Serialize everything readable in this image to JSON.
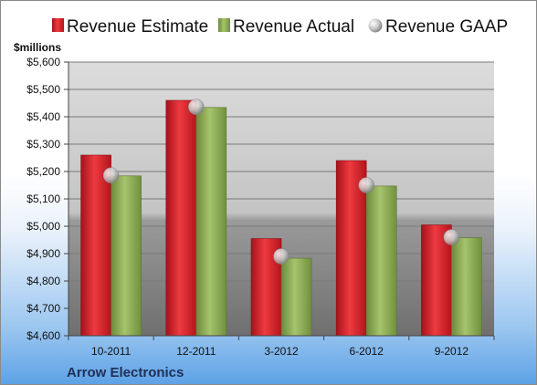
{
  "chart_data": {
    "type": "bar",
    "unit_label": "$millions",
    "footer": "Arrow Electronics",
    "categories": [
      "10-2011",
      "12-2011",
      "3-2012",
      "6-2012",
      "9-2012"
    ],
    "ylim": [
      4600,
      5600
    ],
    "yticks": [
      4600,
      4700,
      4800,
      4900,
      5000,
      5100,
      5200,
      5300,
      5400,
      5500,
      5600
    ],
    "ytick_labels": [
      "$4,600",
      "$4,700",
      "$4,800",
      "$4,900",
      "$5,000",
      "$5,100",
      "$5,200",
      "$5,300",
      "$5,400",
      "$5,500",
      "$5,600"
    ],
    "grid": true,
    "legend_position": "top",
    "series": [
      {
        "name": "Revenue Estimate",
        "kind": "bar",
        "color": "#d9202a",
        "values": [
          5260,
          5460,
          4955,
          5240,
          5005
        ]
      },
      {
        "name": "Revenue Actual",
        "kind": "bar",
        "color": "#8fb05a",
        "values": [
          5184,
          5434,
          4883,
          5147,
          4958
        ]
      },
      {
        "name": "Revenue GAAP",
        "kind": "marker",
        "color": "#c8c8c8",
        "values": [
          5186,
          5436,
          4890,
          5150,
          4960
        ]
      }
    ]
  }
}
